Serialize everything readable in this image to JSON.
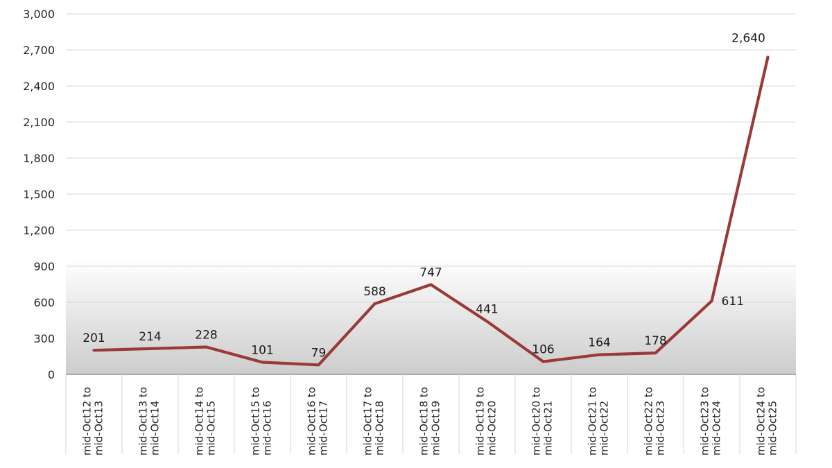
{
  "chart_data": {
    "type": "line",
    "title": "",
    "categories": [
      [
        "mid-Oct12 to",
        "mid-Oct13"
      ],
      [
        "mid-Oct13 to",
        "mid-Oct14"
      ],
      [
        "mid-Oct14 to",
        "mid-Oct15"
      ],
      [
        "mid-Oct15 to",
        "mid-Oct16"
      ],
      [
        "mid-Oct16 to",
        "mid-Oct17"
      ],
      [
        "mid-Oct17 to",
        "mid-Oct18"
      ],
      [
        "mid-Oct18 to",
        "mid-Oct19"
      ],
      [
        "mid-Oct19 to",
        "mid-Oct20"
      ],
      [
        "mid-Oct20 to",
        "mid-Oct21"
      ],
      [
        "mid-Oct21 to",
        "mid-Oct22"
      ],
      [
        "mid-Oct22 to",
        "mid-Oct23"
      ],
      [
        "mid-Oct23 to",
        "mid-Oct24"
      ],
      [
        "mid-Oct24 to",
        "mid-Oct25"
      ]
    ],
    "values": [
      201,
      214,
      228,
      101,
      79,
      588,
      747,
      441,
      106,
      164,
      178,
      611,
      2640
    ],
    "value_labels": [
      "201",
      "214",
      "228",
      "101",
      "79",
      "588",
      "747",
      "441",
      "106",
      "164",
      "178",
      "611",
      "2,640"
    ],
    "ylim": [
      0,
      3000
    ],
    "ytick_step": 300,
    "ytick_labels": [
      "0",
      "300",
      "600",
      "900",
      "1,200",
      "1,500",
      "1,800",
      "2,100",
      "2,400",
      "2,700",
      "3,000"
    ],
    "grid": true,
    "legend": "none",
    "xlabel": "",
    "ylabel": "",
    "line_color": "#9a3a38",
    "gridline_color": "#d9d9d9",
    "axis_line_color": "#808080",
    "tick_separator_color": "#d4d4d4",
    "label_color": "#1a1a1a",
    "tick_label_color": "#262626",
    "plot_gradient_bottom": "#cccccc"
  }
}
